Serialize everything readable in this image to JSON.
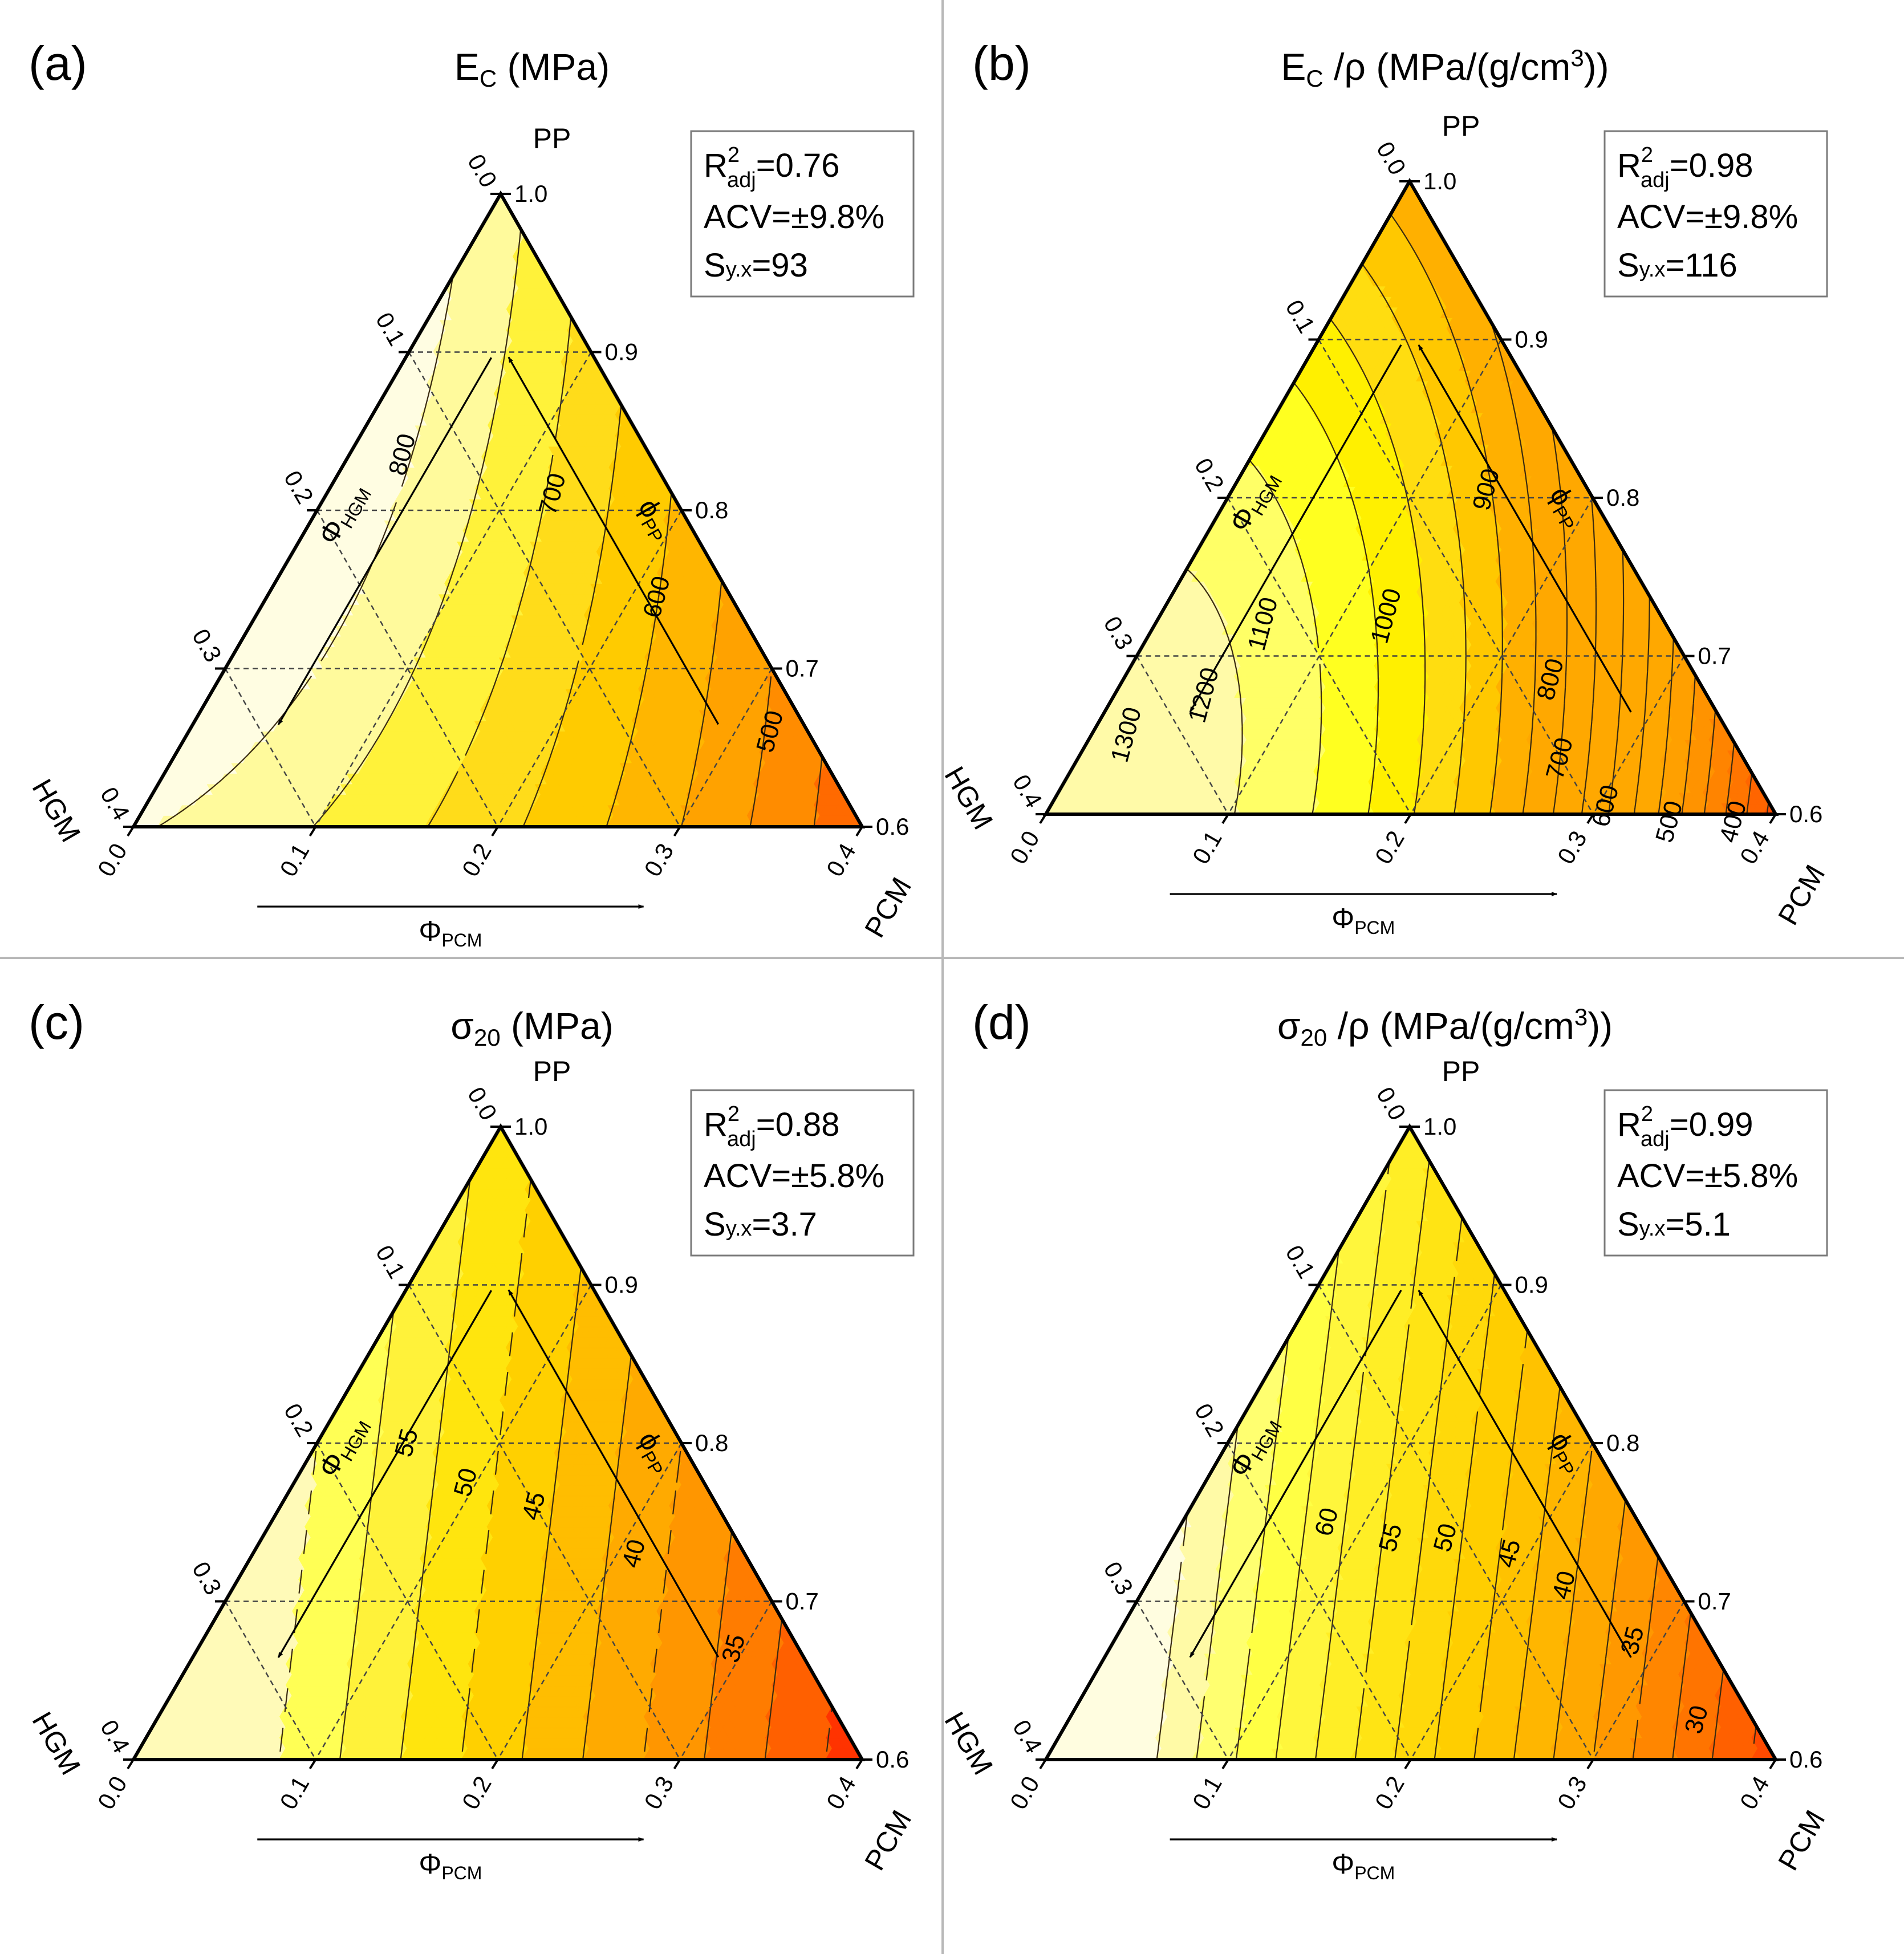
{
  "figure": {
    "axis_labels": {
      "pp_vertex": "PP",
      "hgm_vertex": "HGM",
      "pcm_vertex": "PCM",
      "phi_symbol": "Φ",
      "phi_pp_symbol": "ϕ",
      "hgm_sub": "HGM",
      "pcm_sub": "PCM",
      "pp_sub": "PP"
    },
    "ticks": {
      "hgm": [
        "0.0",
        "0.1",
        "0.2",
        "0.3",
        "0.4"
      ],
      "pcm": [
        "0.0",
        "0.1",
        "0.2",
        "0.3",
        "0.4"
      ],
      "pp": [
        "1.0",
        "0.9",
        "0.8",
        "0.7",
        "0.6"
      ]
    },
    "colors": {
      "background": "#ffffff",
      "divider": "#b8b8b8",
      "palette": [
        "#fffde0",
        "#fffab0",
        "#ffff45",
        "#fff23a",
        "#ffe519",
        "#ffd400",
        "#ffc400",
        "#ffb300",
        "#ffa100",
        "#ff8e00",
        "#ff7c00",
        "#ff6200",
        "#ff4400",
        "#ff2200",
        "#ff0000"
      ]
    }
  },
  "chart_data": [
    {
      "type": "ternary-contour",
      "panel": "(a)",
      "title": "E",
      "title_sub": "C",
      "title_unit": "(MPa)",
      "stats": {
        "r2_label": "R",
        "r2_sup": "2",
        "r2_sub": "adj",
        "r2_value": "=0.76",
        "acv": "ACV=±9.8%",
        "syx_label": "Sy.x",
        "syx_value": "=93"
      },
      "axes": {
        "pcm_range": [
          0,
          0.4
        ],
        "hgm_range": [
          0,
          0.4
        ],
        "pp_range": [
          0.6,
          1.0
        ]
      },
      "model": {
        "c": 820,
        "a_hgm": 650,
        "b_pcm": -900,
        "d_pcm2": 0,
        "e_hp": 0,
        "f_hgm2": -1400,
        "g_pp": 0
      },
      "levels": [
        500,
        600,
        700,
        800
      ],
      "fill_levels": [
        450,
        500,
        550,
        600,
        650,
        700,
        750,
        800,
        850,
        900
      ],
      "colors": [
        "#ff1a00",
        "#ff6a00",
        "#ff8c00",
        "#ffa200",
        "#ffb600",
        "#ffcb00",
        "#ffdc1a",
        "#fff23a",
        "#fffa9c",
        "#fffde2",
        "#fffff0"
      ],
      "contour_labels": [
        {
          "text": "800",
          "h": 0.135,
          "p": 0.03
        },
        {
          "text": "700",
          "h": 0.065,
          "p": 0.125
        },
        {
          "text": "600",
          "h": 0.04,
          "p": 0.215
        },
        {
          "text": "500",
          "h": 0.02,
          "p": 0.32
        }
      ]
    },
    {
      "type": "ternary-contour",
      "panel": "(b)",
      "title": "E",
      "title_sub": "C",
      "title_unit": "/ρ (MPa/(g/cm",
      "title_sup": "3",
      "title_end": "))",
      "stats": {
        "r2_label": "R",
        "r2_sup": "2",
        "r2_sub": "adj",
        "r2_value": "=0.98",
        "acv": "ACV=±9.8%",
        "syx_label": "Sy.x",
        "syx_value": "=116"
      },
      "axes": {
        "pcm_range": [
          0,
          0.4
        ],
        "hgm_range": [
          0,
          0.4
        ],
        "pp_range": [
          0.6,
          1.0
        ]
      },
      "model": {
        "c": 1000,
        "a_hgm": 1600,
        "b_pcm": 0,
        "d_pcm2": -3800,
        "e_hp": 0,
        "f_hgm2": -2500,
        "g_pp": -180
      },
      "levels": [
        400,
        500,
        600,
        700,
        800,
        900,
        1000,
        1100,
        1200,
        1300
      ],
      "fill_levels": [
        350,
        400,
        450,
        500,
        550,
        600,
        650,
        700,
        750,
        800,
        850,
        900,
        950,
        1000,
        1050,
        1100,
        1150,
        1200,
        1250,
        1300
      ],
      "colors": [
        "#ff1200",
        "#ff3300",
        "#ff4e00",
        "#ff6500",
        "#ff7500",
        "#ff8400",
        "#ff9300",
        "#ffa000",
        "#ffa800",
        "#ffa800",
        "#ffa800",
        "#ffa800",
        "#ffa800",
        "#ffb000",
        "#ffc800",
        "#ffdd10",
        "#fff000",
        "#ffff20",
        "#ffff66",
        "#fffaa8",
        "#fffde2"
      ],
      "contour_labels": [
        {
          "text": "900",
          "h": 0.055,
          "p": 0.14
        },
        {
          "text": "1000",
          "h": 0.15,
          "p": 0.125
        },
        {
          "text": "1100",
          "h": 0.22,
          "p": 0.06
        },
        {
          "text": "1200",
          "h": 0.275,
          "p": 0.05
        },
        {
          "text": "1300",
          "h": 0.33,
          "p": 0.02
        },
        {
          "text": "800",
          "h": 0.08,
          "p": 0.235
        },
        {
          "text": "700",
          "h": 0.1,
          "p": 0.265
        },
        {
          "text": "600",
          "h": 0.09,
          "p": 0.305
        },
        {
          "text": "500",
          "h": 0.06,
          "p": 0.345
        },
        {
          "text": "400",
          "h": 0.025,
          "p": 0.38
        }
      ]
    },
    {
      "type": "ternary-contour",
      "panel": "(c)",
      "title": "σ",
      "title_sub": "20",
      "title_unit": "(MPa)",
      "stats": {
        "r2_label": "R",
        "r2_sup": "2",
        "r2_sub": "adj",
        "r2_value": "=0.88",
        "acv": "ACV=±5.8%",
        "syx_label": "Sy.x",
        "syx_value": "=3.7"
      },
      "axes": {
        "pcm_range": [
          0,
          0.4
        ],
        "hgm_range": [
          0,
          0.4
        ],
        "pp_range": [
          0.6,
          1.0
        ]
      },
      "model": {
        "c": 60,
        "a_hgm": 0,
        "b_pcm": -75,
        "d_pcm2": 0,
        "e_hp": 0,
        "f_hgm2": 0,
        "g_pp": -30
      },
      "levels": [
        35,
        40,
        45,
        50,
        55
      ],
      "fill_levels": [
        32.5,
        35,
        37.5,
        40,
        42.5,
        45,
        47.5,
        50,
        52.5,
        55,
        57.5,
        60
      ],
      "colors": [
        "#ff0000",
        "#ff1a00",
        "#ff3300",
        "#ff6000",
        "#ff7c00",
        "#ff9600",
        "#ffaa00",
        "#ffbd00",
        "#ffd000",
        "#ffe50e",
        "#fff23a",
        "#ffff55",
        "#fffab8"
      ],
      "contour_labels": [
        {
          "text": "55",
          "h": 0.15,
          "p": 0.05
        },
        {
          "text": "50",
          "h": 0.13,
          "p": 0.095
        },
        {
          "text": "45",
          "h": 0.1,
          "p": 0.14
        },
        {
          "text": "40",
          "h": 0.06,
          "p": 0.21
        },
        {
          "text": "35",
          "h": 0.035,
          "p": 0.295
        }
      ]
    },
    {
      "type": "ternary-contour",
      "panel": "(d)",
      "title": "σ",
      "title_sub": "20",
      "title_unit": "/ρ (MPa/(g/cm",
      "title_sup": "3",
      "title_end": "))",
      "stats": {
        "r2_label": "R",
        "r2_sup": "2",
        "r2_sub": "adj",
        "r2_value": "=0.99",
        "acv": "ACV=±5.8%",
        "syx_label": "Sy.x",
        "syx_value": "=5.1"
      },
      "axes": {
        "pcm_range": [
          0,
          0.4
        ],
        "hgm_range": [
          0,
          0.4
        ],
        "pp_range": [
          0.6,
          1.0
        ]
      },
      "model": {
        "c": 62,
        "a_hgm": 30,
        "b_pcm": -85,
        "d_pcm2": 0,
        "e_hp": 0,
        "f_hgm2": 0,
        "g_pp": -15
      },
      "levels": [
        30,
        35,
        40,
        45,
        50,
        55,
        60
      ],
      "fill_levels": [
        27.5,
        30,
        32.5,
        35,
        37.5,
        40,
        42.5,
        45,
        47.5,
        50,
        52.5,
        55,
        57.5,
        60,
        62.5,
        65,
        67.5,
        70
      ],
      "colors": [
        "#ff1800",
        "#ff3000",
        "#ff4a00",
        "#ff6000",
        "#ff7400",
        "#ff8600",
        "#ff9800",
        "#ffa800",
        "#ffb600",
        "#ffc200",
        "#ffce00",
        "#ffd90a",
        "#ffe414",
        "#ffee26",
        "#fff63c",
        "#ffff44",
        "#ffff70",
        "#fffaa6",
        "#fffde0"
      ],
      "contour_labels": [
        {
          "text": "60",
          "h": 0.17,
          "p": 0.08
        },
        {
          "text": "55",
          "h": 0.14,
          "p": 0.12
        },
        {
          "text": "50",
          "h": 0.11,
          "p": 0.15
        },
        {
          "text": "45",
          "h": 0.08,
          "p": 0.19
        },
        {
          "text": "40",
          "h": 0.06,
          "p": 0.23
        },
        {
          "text": "35",
          "h": 0.04,
          "p": 0.285
        },
        {
          "text": "30",
          "h": 0.03,
          "p": 0.345
        }
      ]
    }
  ]
}
